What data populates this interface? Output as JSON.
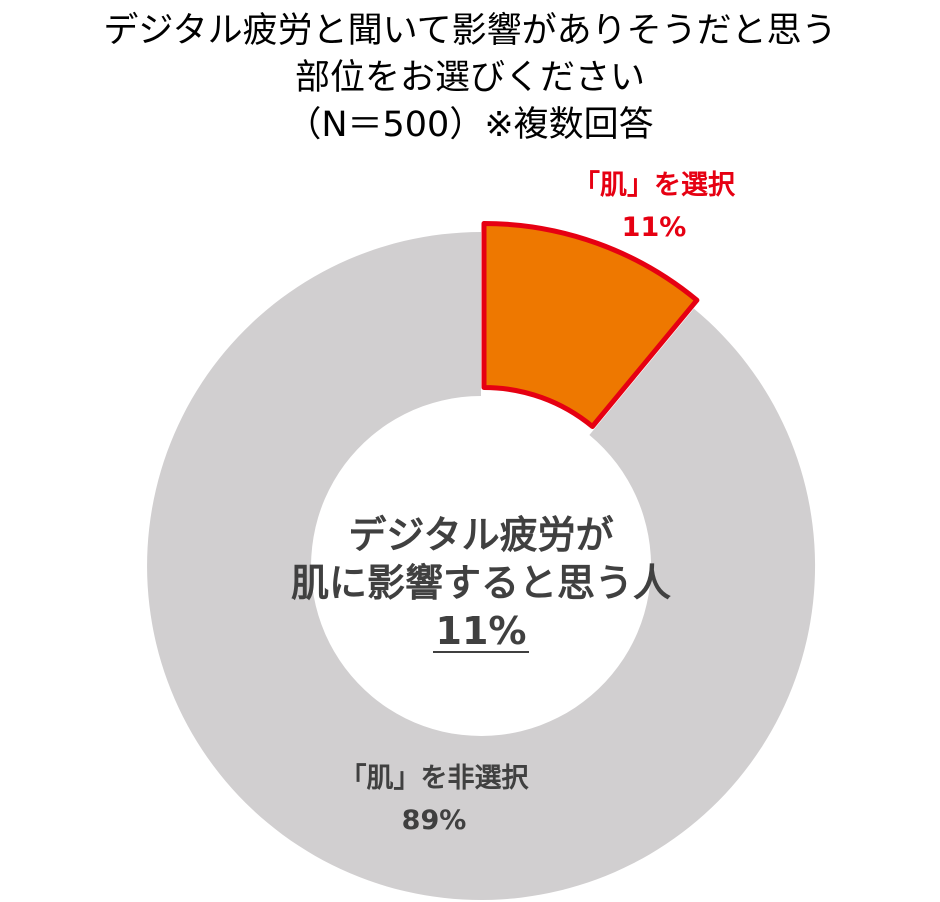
{
  "title": {
    "line1": "デジタル疲労と聞いて影響がありそうだと思う",
    "line2": "部位をお選びください",
    "line3": "（N＝500）※複数回答"
  },
  "chart_data": {
    "type": "pie",
    "subtype": "donut",
    "slices": [
      {
        "label_line1": "「肌」を選択",
        "value": 11,
        "value_label": "11%",
        "color": "#EE7800",
        "outline": "#E60012",
        "exploded": true
      },
      {
        "label_line1": "「肌」を非選択",
        "value": 89,
        "value_label": "89%",
        "color": "#D1CFD0",
        "outline": "",
        "exploded": false
      }
    ],
    "center_text": {
      "line1": "デジタル疲労が",
      "line2": "肌に影響すると思う人",
      "line3": "11%"
    }
  },
  "colors": {
    "highlight_text": "#E60012",
    "secondary_text": "#404040",
    "title_text": "#000000"
  }
}
